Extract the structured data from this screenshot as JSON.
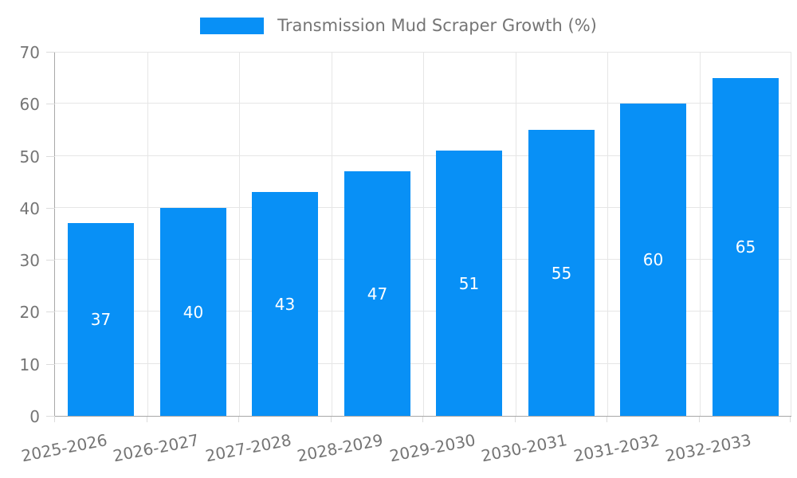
{
  "chart_data": {
    "type": "bar",
    "title": "Transmission Mud Scraper Growth (%)",
    "categories": [
      "2025-2026",
      "2026-2027",
      "2027-2028",
      "2028-2029",
      "2029-2030",
      "2030-2031",
      "2031-2032",
      "2032-2033"
    ],
    "values": [
      37,
      40,
      43,
      47,
      51,
      55,
      60,
      65
    ],
    "value_labels": [
      "37",
      "40",
      "43",
      "47",
      "51",
      "55",
      "60",
      "65"
    ],
    "yticks": [
      0,
      10,
      20,
      30,
      40,
      50,
      60,
      70
    ],
    "ylim": [
      0,
      70
    ],
    "xlabel": "",
    "ylabel": "",
    "grid": true,
    "legend_position": "top",
    "colors": {
      "bar": "#0890F6",
      "grid": "#e6e6e6",
      "axis": "#a8a8a8",
      "tick": "#dcdcdc",
      "label": "#757575",
      "value_label": "#ffffff",
      "background": "#ffffff"
    }
  }
}
